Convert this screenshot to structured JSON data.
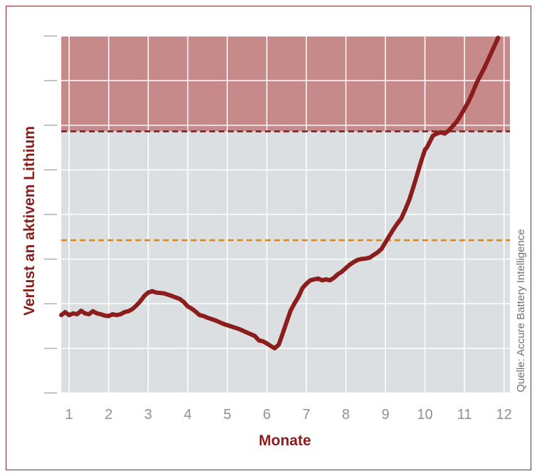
{
  "chart_data": {
    "type": "line",
    "xlabel": "Monate",
    "ylabel": "Verlust an aktivem Lithium",
    "x_ticks": [
      "1",
      "2",
      "3",
      "4",
      "5",
      "6",
      "7",
      "8",
      "9",
      "10",
      "11",
      "12"
    ],
    "xlim": [
      0.8,
      12.15
    ],
    "ylim": [
      0,
      8.2
    ],
    "y_tick_count": 9,
    "grid": true,
    "source_note": "Quelle: Accure Battery Intelligence",
    "zones": [
      {
        "name": "critical",
        "from": 6,
        "to": 8.2,
        "color": "#c68a8b"
      },
      {
        "name": "normal",
        "from": 0,
        "to": 6,
        "color": "#dbdfe2"
      }
    ],
    "thresholds": [
      {
        "value": 6.0,
        "color": "#7d1a1a",
        "style": "dashed"
      },
      {
        "value": 3.5,
        "color": "#d4881e",
        "style": "dashed"
      }
    ],
    "series": [
      {
        "color": "#8b1d1d",
        "points": [
          [
            0.8,
            1.78
          ],
          [
            0.9,
            1.85
          ],
          [
            1.0,
            1.78
          ],
          [
            1.1,
            1.82
          ],
          [
            1.2,
            1.8
          ],
          [
            1.3,
            1.88
          ],
          [
            1.4,
            1.82
          ],
          [
            1.5,
            1.8
          ],
          [
            1.6,
            1.87
          ],
          [
            1.7,
            1.82
          ],
          [
            1.8,
            1.8
          ],
          [
            1.9,
            1.77
          ],
          [
            2.0,
            1.76
          ],
          [
            2.1,
            1.8
          ],
          [
            2.2,
            1.78
          ],
          [
            2.3,
            1.8
          ],
          [
            2.4,
            1.85
          ],
          [
            2.5,
            1.87
          ],
          [
            2.6,
            1.92
          ],
          [
            2.7,
            2.0
          ],
          [
            2.8,
            2.1
          ],
          [
            2.9,
            2.22
          ],
          [
            3.0,
            2.3
          ],
          [
            3.1,
            2.33
          ],
          [
            3.2,
            2.3
          ],
          [
            3.4,
            2.28
          ],
          [
            3.6,
            2.22
          ],
          [
            3.8,
            2.15
          ],
          [
            3.9,
            2.08
          ],
          [
            4.0,
            1.98
          ],
          [
            4.1,
            1.93
          ],
          [
            4.2,
            1.86
          ],
          [
            4.3,
            1.78
          ],
          [
            4.4,
            1.76
          ],
          [
            4.5,
            1.72
          ],
          [
            4.7,
            1.66
          ],
          [
            4.9,
            1.58
          ],
          [
            5.1,
            1.52
          ],
          [
            5.3,
            1.46
          ],
          [
            5.5,
            1.38
          ],
          [
            5.7,
            1.3
          ],
          [
            5.8,
            1.2
          ],
          [
            5.9,
            1.18
          ],
          [
            6.0,
            1.13
          ],
          [
            6.1,
            1.07
          ],
          [
            6.2,
            1.02
          ],
          [
            6.3,
            1.1
          ],
          [
            6.4,
            1.35
          ],
          [
            6.5,
            1.62
          ],
          [
            6.6,
            1.88
          ],
          [
            6.7,
            2.05
          ],
          [
            6.8,
            2.2
          ],
          [
            6.9,
            2.4
          ],
          [
            7.0,
            2.5
          ],
          [
            7.1,
            2.58
          ],
          [
            7.2,
            2.6
          ],
          [
            7.3,
            2.62
          ],
          [
            7.4,
            2.58
          ],
          [
            7.5,
            2.6
          ],
          [
            7.6,
            2.58
          ],
          [
            7.7,
            2.64
          ],
          [
            7.8,
            2.72
          ],
          [
            7.9,
            2.78
          ],
          [
            8.0,
            2.86
          ],
          [
            8.1,
            2.94
          ],
          [
            8.2,
            3.0
          ],
          [
            8.3,
            3.05
          ],
          [
            8.4,
            3.07
          ],
          [
            8.5,
            3.08
          ],
          [
            8.6,
            3.1
          ],
          [
            8.7,
            3.16
          ],
          [
            8.8,
            3.22
          ],
          [
            8.9,
            3.3
          ],
          [
            9.0,
            3.45
          ],
          [
            9.1,
            3.6
          ],
          [
            9.2,
            3.75
          ],
          [
            9.3,
            3.88
          ],
          [
            9.4,
            4.0
          ],
          [
            9.5,
            4.2
          ],
          [
            9.6,
            4.42
          ],
          [
            9.7,
            4.7
          ],
          [
            9.8,
            5.0
          ],
          [
            9.9,
            5.3
          ],
          [
            10.0,
            5.58
          ],
          [
            10.05,
            5.63
          ],
          [
            10.1,
            5.72
          ],
          [
            10.2,
            5.9
          ],
          [
            10.3,
            5.95
          ],
          [
            10.4,
            5.98
          ],
          [
            10.5,
            5.95
          ],
          [
            10.6,
            6.02
          ],
          [
            10.7,
            6.12
          ],
          [
            10.8,
            6.22
          ],
          [
            10.9,
            6.36
          ],
          [
            11.0,
            6.52
          ],
          [
            11.1,
            6.68
          ],
          [
            11.2,
            6.88
          ],
          [
            11.3,
            7.1
          ],
          [
            11.4,
            7.28
          ],
          [
            11.5,
            7.45
          ],
          [
            11.6,
            7.65
          ],
          [
            11.7,
            7.85
          ],
          [
            11.8,
            8.05
          ],
          [
            11.85,
            8.15
          ]
        ]
      }
    ]
  }
}
